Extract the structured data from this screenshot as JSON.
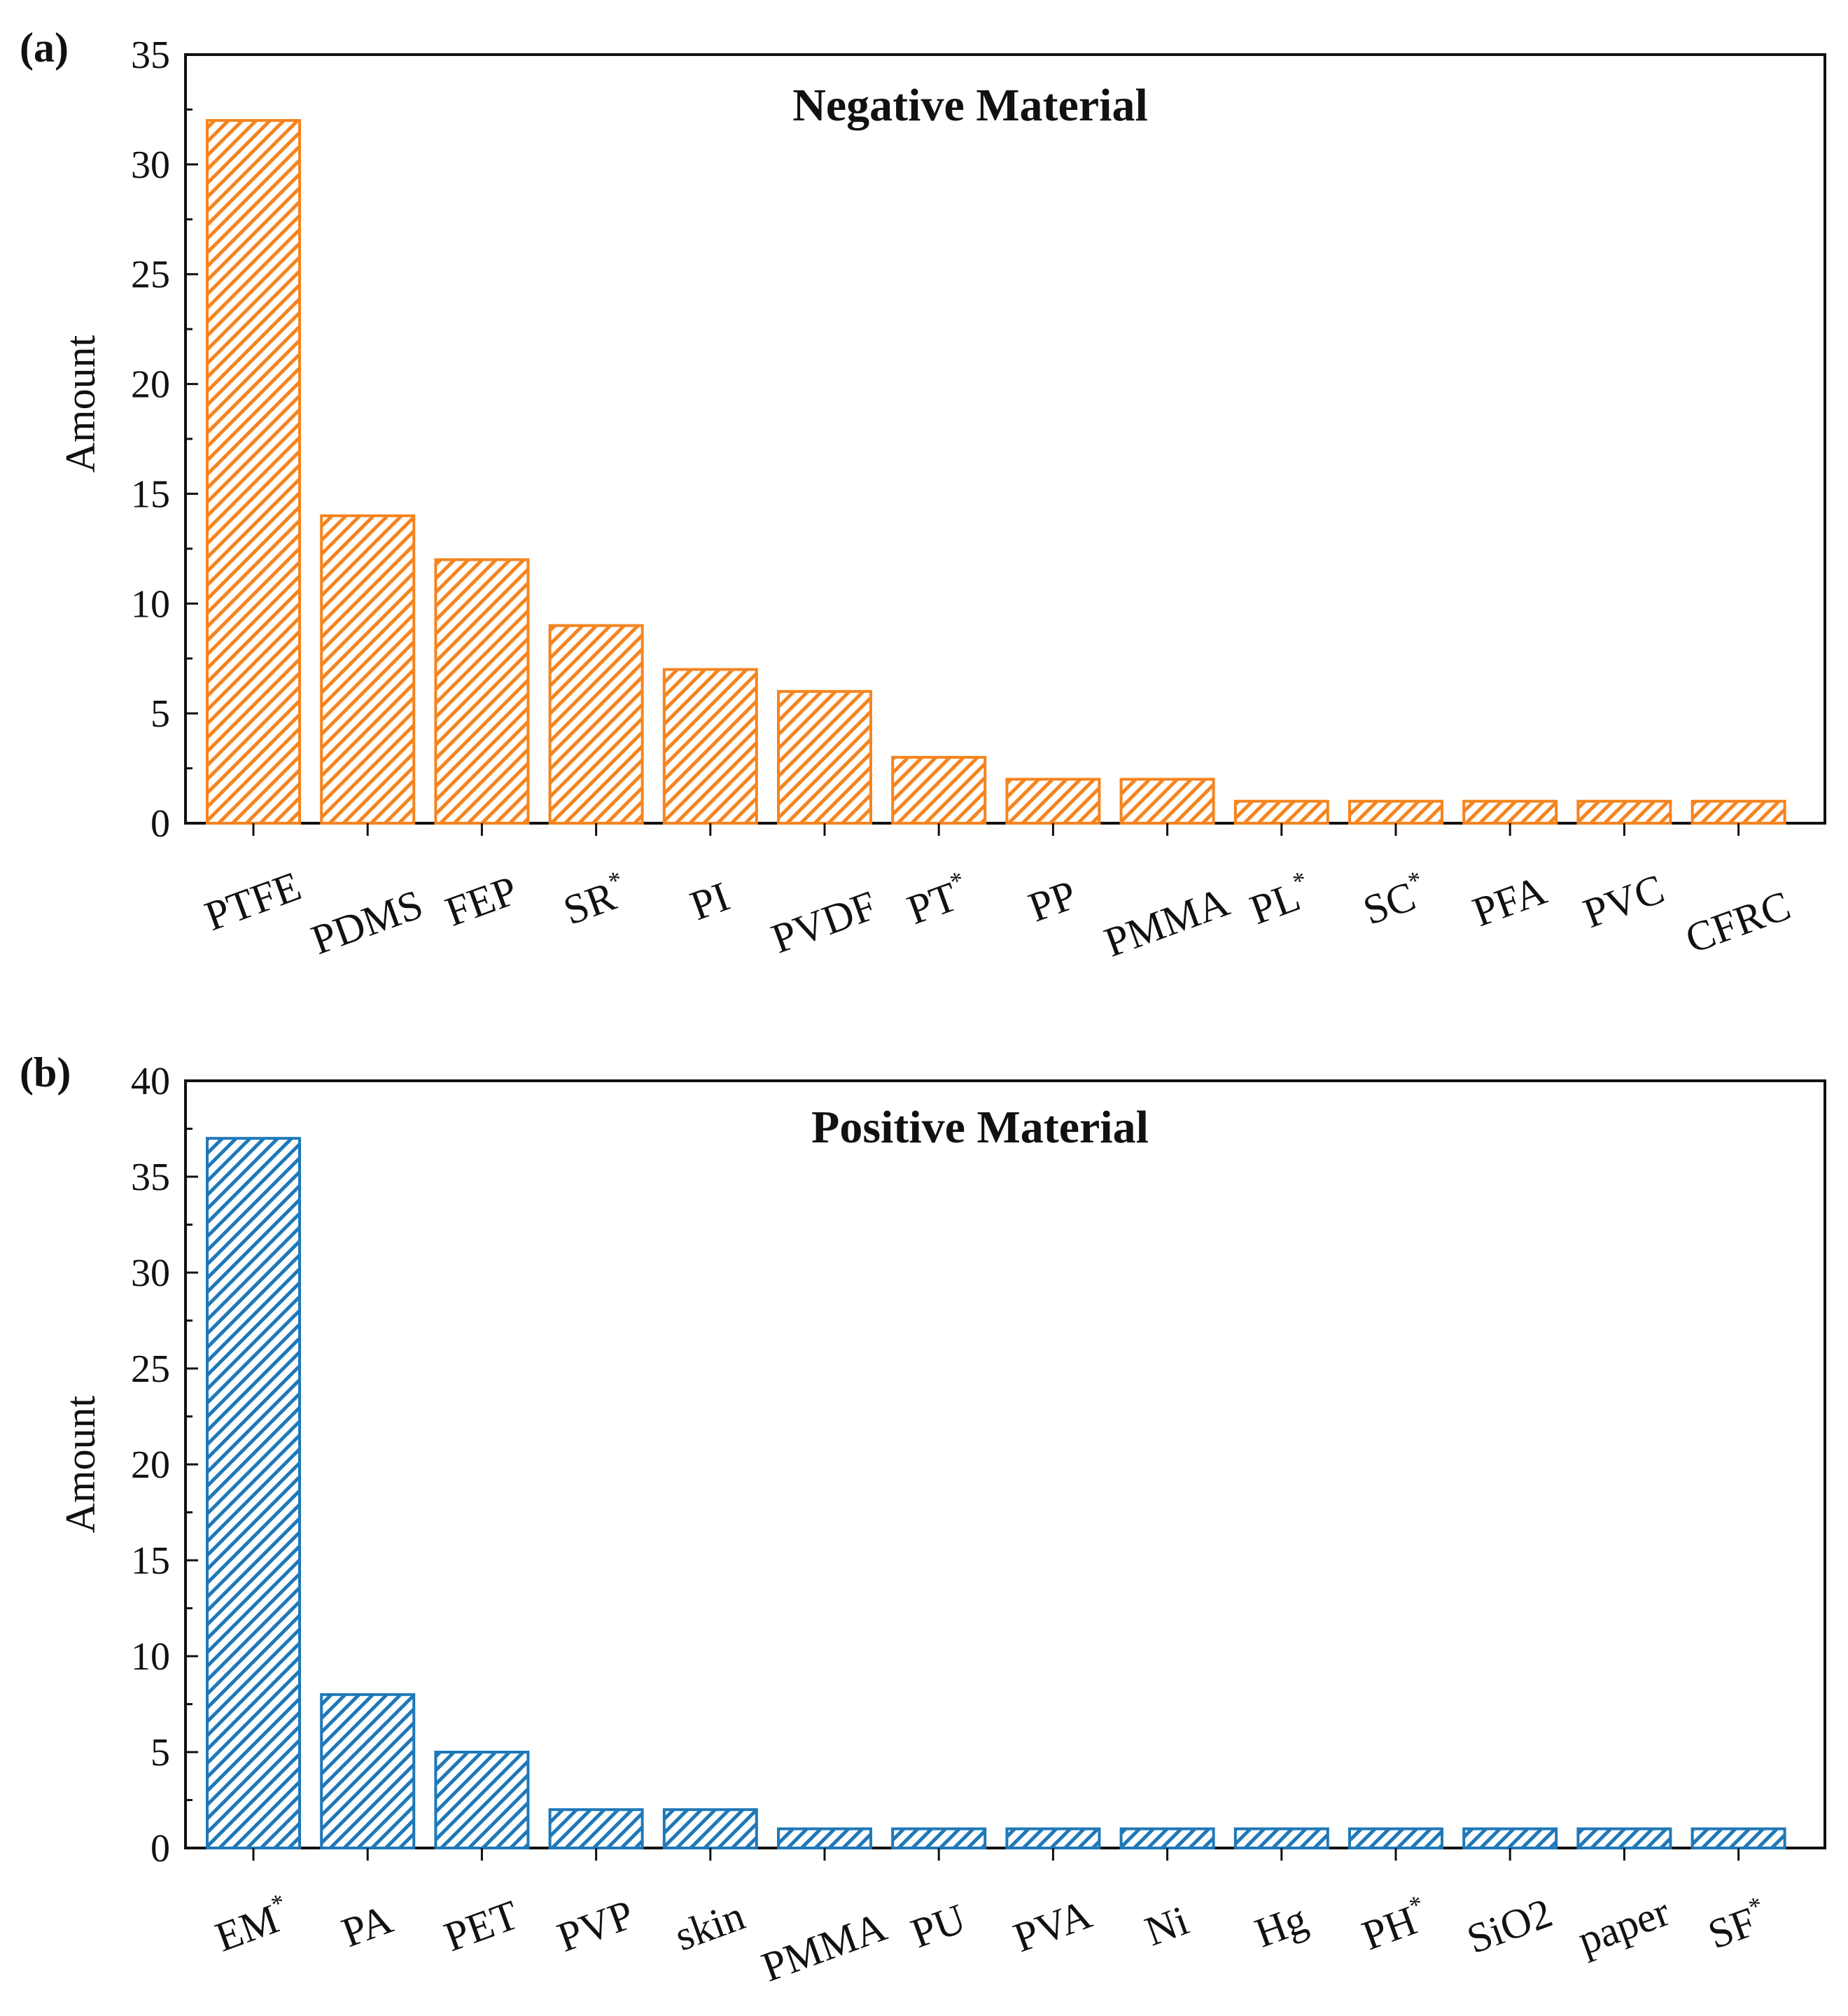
{
  "chart_data": [
    {
      "panel_label": "(a)",
      "type": "bar",
      "title": "Negative Material",
      "xlabel": "",
      "ylabel": "Amount",
      "ylim": [
        0,
        35
      ],
      "yticks": [
        0,
        5,
        10,
        15,
        20,
        25,
        30,
        35
      ],
      "categories": [
        "PTFE",
        "PDMS",
        "FEP",
        "SR",
        "PI",
        "PVDF",
        "PT",
        "PP",
        "PMMA",
        "PL",
        "SC",
        "PFA",
        "PVC",
        "CFRC"
      ],
      "category_superscripts": [
        "",
        "",
        "",
        "*",
        "",
        "",
        "*",
        "",
        "",
        "*",
        "*",
        "",
        "",
        ""
      ],
      "values": [
        32,
        14,
        12,
        9,
        7,
        6,
        3,
        2,
        2,
        1,
        1,
        1,
        1,
        1
      ],
      "color": "#F5841F",
      "bar_style": "hatched"
    },
    {
      "panel_label": "(b)",
      "type": "bar",
      "title": "Positive Material",
      "xlabel": "",
      "ylabel": "Amount",
      "ylim": [
        0,
        40
      ],
      "yticks": [
        0,
        5,
        10,
        15,
        20,
        25,
        30,
        35,
        40
      ],
      "categories": [
        "EM",
        "PA",
        "PET",
        "PVP",
        "skin",
        "PMMA",
        "PU",
        "PVA",
        "Ni",
        "Hg",
        "PH",
        "SiO2",
        "paper",
        "SF"
      ],
      "category_superscripts": [
        "*",
        "",
        "",
        "",
        "",
        "",
        "",
        "",
        "",
        "",
        "*",
        "",
        "",
        "*"
      ],
      "values": [
        37,
        8,
        5,
        2,
        2,
        1,
        1,
        1,
        1,
        1,
        1,
        1,
        1,
        1
      ],
      "color": "#1F78B8",
      "bar_style": "hatched"
    }
  ]
}
